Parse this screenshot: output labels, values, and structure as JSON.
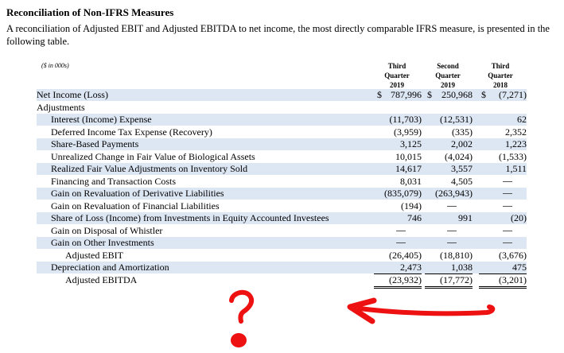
{
  "section_title": "Reconciliation of Non-IFRS Measures",
  "intro": "A reconciliation of Adjusted EBIT and Adjusted EBITDA to net income, the most directly comparable IFRS measure, is presented in the following table.",
  "units_note": "($ in 000s)",
  "columns": [
    {
      "line1": "Third",
      "line2": "Quarter",
      "year": "2019"
    },
    {
      "line1": "Second",
      "line2": "Quarter",
      "year": "2019"
    },
    {
      "line1": "Third",
      "line2": "Quarter",
      "year": "2018"
    }
  ],
  "rows": [
    {
      "label": "Net Income (Loss)",
      "indent": 0,
      "v1": "787,996",
      "v2": "250,968",
      "v3": "(7,271)"
    },
    {
      "label": "Adjustments",
      "indent": 0,
      "v1": "",
      "v2": "",
      "v3": ""
    },
    {
      "label": "Interest (Income) Expense",
      "indent": 1,
      "v1": "(11,703)",
      "v2": "(12,531)",
      "v3": "62"
    },
    {
      "label": "Deferred Income Tax Expense (Recovery)",
      "indent": 1,
      "v1": "(3,959)",
      "v2": "(335)",
      "v3": "2,352"
    },
    {
      "label": "Share-Based Payments",
      "indent": 1,
      "v1": "3,125",
      "v2": "2,002",
      "v3": "1,223"
    },
    {
      "label": "Unrealized Change in Fair Value of Biological Assets",
      "indent": 1,
      "v1": "10,015",
      "v2": "(4,024)",
      "v3": "(1,533)"
    },
    {
      "label": "Realized Fair Value Adjustments on Inventory Sold",
      "indent": 1,
      "v1": "14,617",
      "v2": "3,557",
      "v3": "1,511"
    },
    {
      "label": "Financing and Transaction Costs",
      "indent": 1,
      "v1": "8,031",
      "v2": "4,505",
      "v3": "—"
    },
    {
      "label": "Gain on Revaluation of Derivative Liabilities",
      "indent": 1,
      "v1": "(835,079)",
      "v2": "(263,943)",
      "v3": "—"
    },
    {
      "label": "Gain on Revaluation of Financial Liabilities",
      "indent": 1,
      "v1": "(194)",
      "v2": "—",
      "v3": "—"
    },
    {
      "label": "Share of Loss (Income) from Investments in Equity Accounted Investees",
      "indent": 1,
      "v1": "746",
      "v2": "991",
      "v3": "(20)"
    },
    {
      "label": "Gain on Disposal of Whistler",
      "indent": 1,
      "v1": "—",
      "v2": "—",
      "v3": "—"
    },
    {
      "label": "Gain on Other Investments",
      "indent": 1,
      "v1": "—",
      "v2": "—",
      "v3": "—"
    },
    {
      "label": "Adjusted EBIT",
      "indent": 2,
      "v1": "(26,405)",
      "v2": "(18,810)",
      "v3": "(3,676)"
    },
    {
      "label": "Depreciation and Amortization",
      "indent": 1,
      "v1": "2,473",
      "v2": "1,038",
      "v3": "475"
    },
    {
      "label": "Adjusted EBITDA",
      "indent": 2,
      "v1": "(23,932)",
      "v2": "(17,772)",
      "v3": "(3,201)"
    }
  ],
  "dollar_sign": "$",
  "annotation": {
    "mark": "question-mark",
    "arrow": "left-arrow",
    "color": "#ee1111"
  }
}
